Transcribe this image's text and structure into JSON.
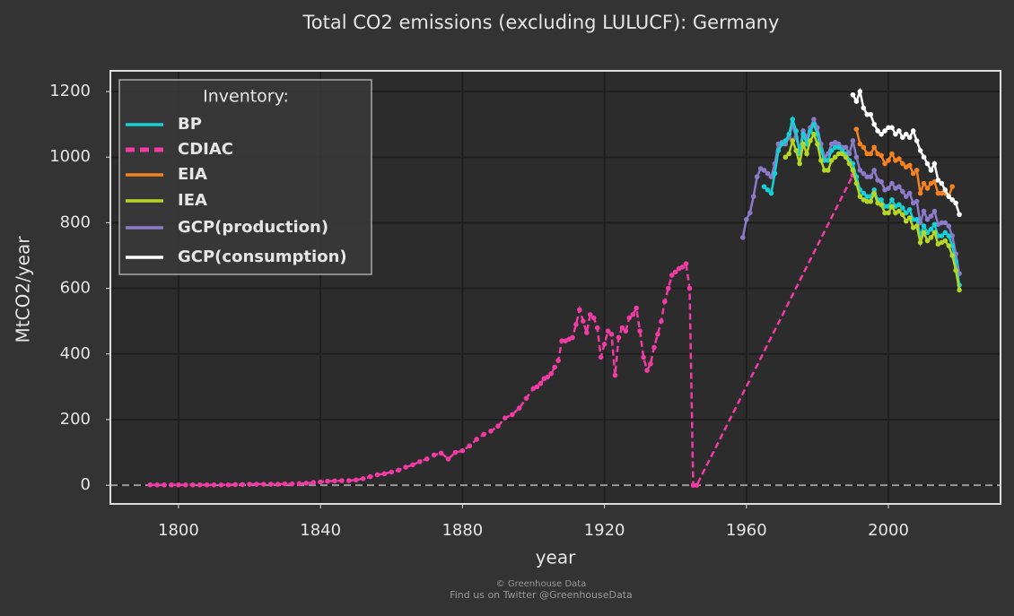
{
  "chart_data": {
    "type": "line",
    "title": "Total CO2 emissions (excluding LULUCF): Germany",
    "x_label": "year",
    "y_label": "MtCO2/year",
    "legend_title": "Inventory:",
    "legend": "upper left",
    "grid": true,
    "hline": 0,
    "xlim": [
      1780.8,
      2031.6
    ],
    "ylim": [
      -57,
      1263
    ],
    "xticks": [
      1800,
      1840,
      1880,
      1920,
      1960,
      2000
    ],
    "yticks": [
      0,
      200,
      400,
      600,
      800,
      1000,
      1200
    ],
    "footer": [
      "© Greenhouse Data",
      "Find us on Twitter @GreenhouseData"
    ],
    "series": [
      {
        "name": "BP",
        "color": "#17cfd6",
        "dashed": false,
        "x": [
          1965,
          1966,
          1967,
          1968,
          1969,
          1970,
          1971,
          1972,
          1973,
          1974,
          1975,
          1976,
          1977,
          1978,
          1979,
          1980,
          1981,
          1982,
          1983,
          1984,
          1985,
          1986,
          1987,
          1988,
          1989,
          1990,
          1991,
          1992,
          1993,
          1994,
          1995,
          1996,
          1997,
          1998,
          1999,
          2000,
          2001,
          2002,
          2003,
          2004,
          2005,
          2006,
          2007,
          2008,
          2009,
          2010,
          2011,
          2012,
          2013,
          2014,
          2015,
          2016,
          2017,
          2018,
          2019,
          2020
        ],
        "values": [
          910,
          900,
          890,
          950,
          1020,
          1040,
          1050,
          1070,
          1115,
          1080,
          1010,
          1070,
          1040,
          1080,
          1100,
          1070,
          1020,
          990,
          990,
          1020,
          1030,
          1030,
          1020,
          1010,
          990,
          980,
          940,
          900,
          890,
          880,
          880,
          900,
          870,
          870,
          850,
          850,
          870,
          850,
          855,
          845,
          830,
          840,
          810,
          810,
          760,
          790,
          770,
          780,
          795,
          760,
          760,
          770,
          760,
          730,
          680,
          610
        ]
      },
      {
        "name": "CDIAC",
        "color": "#f03ba4",
        "dashed": true,
        "x": [
          1792,
          1794,
          1796,
          1798,
          1800,
          1802,
          1804,
          1806,
          1808,
          1810,
          1812,
          1814,
          1816,
          1818,
          1820,
          1822,
          1824,
          1826,
          1828,
          1830,
          1832,
          1834,
          1836,
          1838,
          1840,
          1842,
          1844,
          1846,
          1848,
          1850,
          1852,
          1854,
          1856,
          1858,
          1860,
          1862,
          1864,
          1866,
          1868,
          1870,
          1872,
          1874,
          1876,
          1878,
          1880,
          1882,
          1884,
          1886,
          1888,
          1890,
          1892,
          1894,
          1896,
          1898,
          1900,
          1901,
          1902,
          1903,
          1904,
          1905,
          1906,
          1907,
          1908,
          1909,
          1910,
          1911,
          1912,
          1913,
          1914,
          1915,
          1916,
          1917,
          1918,
          1919,
          1920,
          1921,
          1922,
          1923,
          1924,
          1925,
          1926,
          1927,
          1928,
          1929,
          1930,
          1931,
          1932,
          1933,
          1934,
          1935,
          1936,
          1937,
          1938,
          1939,
          1940,
          1941,
          1942,
          1943,
          1944,
          1945,
          1946,
          1990
        ],
        "values": [
          1,
          1,
          1,
          1,
          1,
          1,
          1,
          1,
          1,
          1,
          1,
          1,
          2,
          2,
          3,
          3,
          3,
          3,
          3,
          4,
          4,
          5,
          6,
          8,
          10,
          12,
          13,
          14,
          14,
          16,
          20,
          26,
          32,
          35,
          40,
          46,
          55,
          62,
          72,
          80,
          92,
          98,
          80,
          100,
          105,
          120,
          140,
          155,
          165,
          180,
          205,
          215,
          235,
          265,
          295,
          300,
          310,
          325,
          330,
          340,
          360,
          380,
          440,
          440,
          445,
          450,
          490,
          535,
          500,
          465,
          520,
          510,
          480,
          390,
          430,
          470,
          460,
          335,
          450,
          480,
          470,
          510,
          520,
          540,
          470,
          390,
          350,
          370,
          420,
          460,
          500,
          560,
          600,
          640,
          650,
          660,
          665,
          675,
          600,
          0,
          0,
          945
        ]
      },
      {
        "name": "EIA",
        "color": "#f58220",
        "dashed": false,
        "x": [
          1991,
          1992,
          1993,
          1994,
          1995,
          1996,
          1997,
          1998,
          1999,
          2000,
          2001,
          2002,
          2003,
          2004,
          2005,
          2006,
          2007,
          2008,
          2009,
          2010,
          2011,
          2012,
          2013,
          2014,
          2015,
          2016,
          2017,
          2018
        ],
        "values": [
          1085,
          1040,
          1030,
          1010,
          1010,
          1030,
          1010,
          1005,
          980,
          990,
          1010,
          990,
          995,
          980,
          970,
          975,
          950,
          960,
          890,
          920,
          905,
          920,
          925,
          890,
          890,
          890,
          880,
          910
        ]
      },
      {
        "name": "IEA",
        "color": "#b5d624",
        "dashed": false,
        "x": [
          1971,
          1972,
          1973,
          1974,
          1975,
          1976,
          1977,
          1978,
          1979,
          1980,
          1981,
          1982,
          1983,
          1984,
          1985,
          1986,
          1987,
          1988,
          1989,
          1990,
          1991,
          1992,
          1993,
          1994,
          1995,
          1996,
          1997,
          1998,
          1999,
          2000,
          2001,
          2002,
          2003,
          2004,
          2005,
          2006,
          2007,
          2008,
          2009,
          2010,
          2011,
          2012,
          2013,
          2014,
          2015,
          2016,
          2017,
          2018,
          2019,
          2020
        ],
        "values": [
          1000,
          1010,
          1050,
          1020,
          980,
          1040,
          1010,
          1050,
          1070,
          1040,
          990,
          960,
          960,
          990,
          1000,
          1010,
          1010,
          1000,
          980,
          960,
          920,
          880,
          870,
          865,
          865,
          890,
          860,
          855,
          830,
          830,
          850,
          830,
          835,
          825,
          805,
          815,
          785,
          790,
          740,
          770,
          745,
          755,
          770,
          735,
          740,
          745,
          730,
          700,
          655,
          595
        ]
      },
      {
        "name": "GCP(production)",
        "color": "#8b7bc8",
        "dashed": false,
        "x": [
          1959,
          1960,
          1961,
          1962,
          1963,
          1964,
          1965,
          1966,
          1967,
          1968,
          1969,
          1970,
          1971,
          1972,
          1973,
          1974,
          1975,
          1976,
          1977,
          1978,
          1979,
          1980,
          1981,
          1982,
          1983,
          1984,
          1985,
          1986,
          1987,
          1988,
          1989,
          1990,
          1991,
          1992,
          1993,
          1994,
          1995,
          1996,
          1997,
          1998,
          1999,
          2000,
          2001,
          2002,
          2003,
          2004,
          2005,
          2006,
          2007,
          2008,
          2009,
          2010,
          2011,
          2012,
          2013,
          2014,
          2015,
          2016,
          2017,
          2018,
          2019,
          2020
        ],
        "values": [
          755,
          810,
          830,
          880,
          940,
          965,
          960,
          950,
          940,
          980,
          1040,
          1045,
          1040,
          1060,
          1100,
          1060,
          1020,
          1080,
          1060,
          1090,
          1115,
          1090,
          1040,
          1000,
          1010,
          1040,
          1045,
          1040,
          1030,
          1030,
          1010,
          1050,
          1000,
          960,
          950,
          940,
          940,
          960,
          930,
          925,
          900,
          905,
          920,
          905,
          910,
          895,
          880,
          890,
          860,
          865,
          800,
          835,
          810,
          820,
          835,
          795,
          800,
          800,
          790,
          760,
          705,
          645
        ]
      },
      {
        "name": "GCP(consumption)",
        "color": "#ffffff",
        "dashed": false,
        "x": [
          1990,
          1991,
          1992,
          1993,
          1994,
          1995,
          1996,
          1997,
          1998,
          1999,
          2000,
          2001,
          2002,
          2003,
          2004,
          2005,
          2006,
          2007,
          2008,
          2009,
          2010,
          2011,
          2012,
          2013,
          2014,
          2015,
          2016,
          2017,
          2018,
          2019,
          2020
        ],
        "values": [
          1190,
          1170,
          1200,
          1150,
          1130,
          1130,
          1100,
          1080,
          1070,
          1080,
          1090,
          1090,
          1070,
          1080,
          1060,
          1070,
          1060,
          1080,
          1050,
          1020,
          1000,
          980,
          960,
          980,
          930,
          920,
          900,
          880,
          870,
          860,
          825
        ]
      }
    ]
  }
}
